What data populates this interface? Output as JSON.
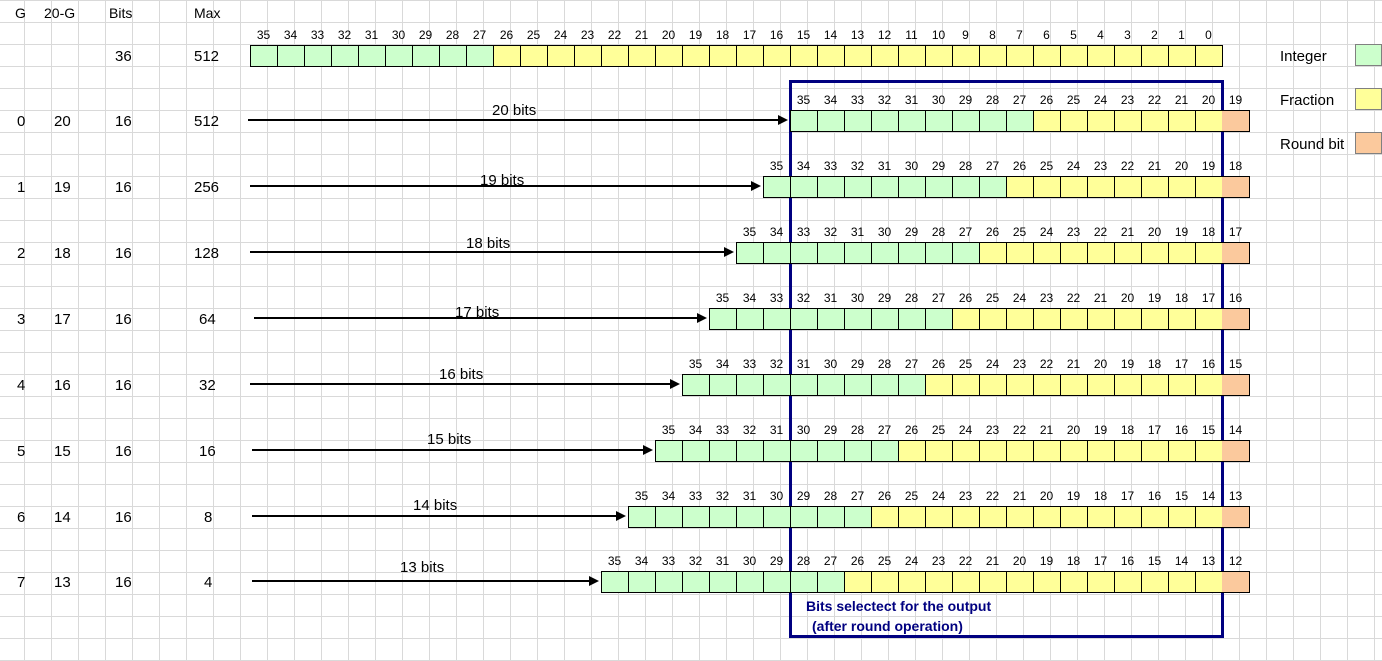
{
  "headers": {
    "g": "G",
    "twenty_minus_g": "20-G",
    "bits": "Bits",
    "max": "Max"
  },
  "top_row": {
    "bits": "36",
    "max": "512"
  },
  "rows": [
    {
      "g": "0",
      "twenty_minus_g": "20",
      "bits": "16",
      "max": "512",
      "arrow_label": "20 bits",
      "round_bit": "19"
    },
    {
      "g": "1",
      "twenty_minus_g": "19",
      "bits": "16",
      "max": "256",
      "arrow_label": "19 bits",
      "round_bit": "18"
    },
    {
      "g": "2",
      "twenty_minus_g": "18",
      "bits": "16",
      "max": "128",
      "arrow_label": "18 bits",
      "round_bit": "17"
    },
    {
      "g": "3",
      "twenty_minus_g": "17",
      "bits": "16",
      "max": "64",
      "arrow_label": "17 bits",
      "round_bit": "16"
    },
    {
      "g": "4",
      "twenty_minus_g": "16",
      "bits": "16",
      "max": "32",
      "arrow_label": "16 bits",
      "round_bit": "15"
    },
    {
      "g": "5",
      "twenty_minus_g": "15",
      "bits": "16",
      "max": "16",
      "arrow_label": "15 bits",
      "round_bit": "14"
    },
    {
      "g": "6",
      "twenty_minus_g": "14",
      "bits": "16",
      "max": "8",
      "arrow_label": "14 bits",
      "round_bit": "13"
    },
    {
      "g": "7",
      "twenty_minus_g": "13",
      "bits": "16",
      "max": "4",
      "arrow_label": "13 bits",
      "round_bit": "12"
    }
  ],
  "legend": {
    "integer": "Integer",
    "fraction": "Fraction",
    "round": "Round bit"
  },
  "colors": {
    "integer": "#ccffcc",
    "fraction": "#ffff99",
    "round": "#fbc99d",
    "selection": "#000080"
  },
  "selection_note": {
    "line1": "Bits selectect for the output",
    "line2": "(after round operation)"
  }
}
